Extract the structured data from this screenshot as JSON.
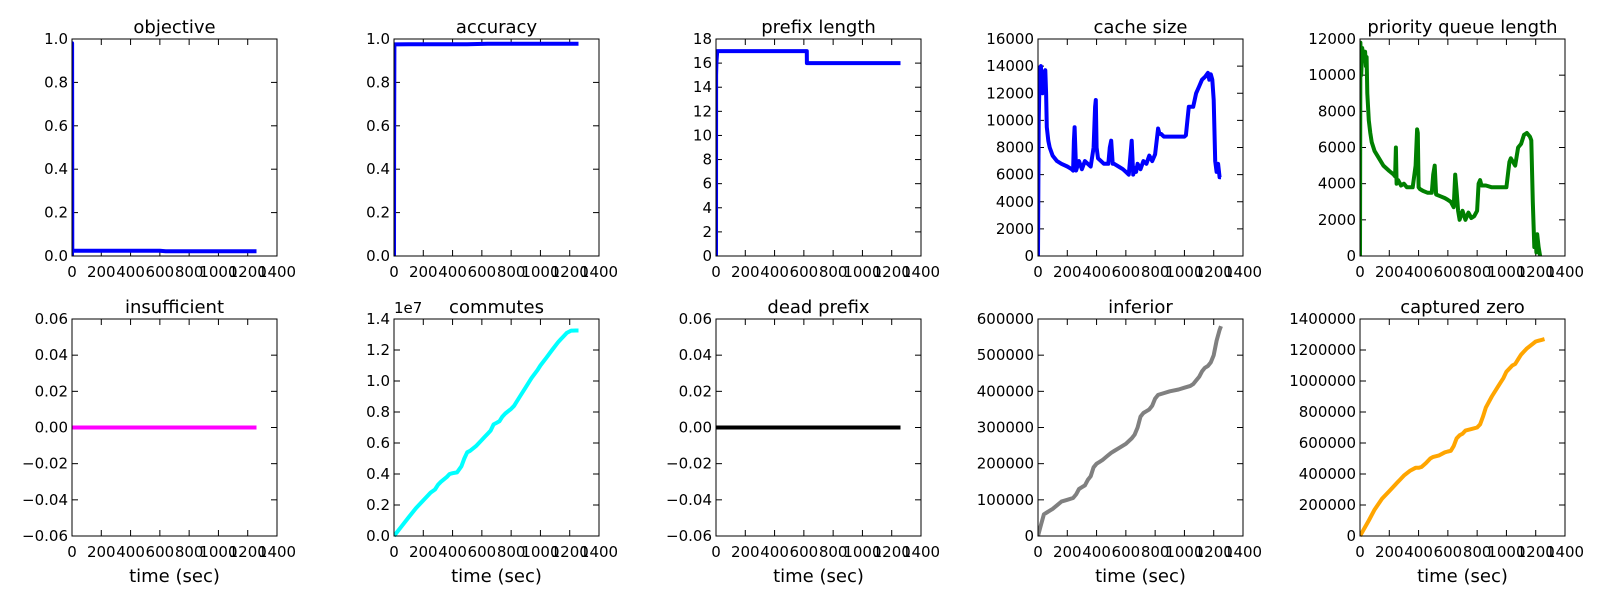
{
  "chart_data": [
    {
      "type": "line",
      "title": "objective",
      "xlabel": "",
      "ylabel": "",
      "xlim": [
        0,
        1400
      ],
      "ylim": [
        0,
        1.0
      ],
      "xticks": [
        0,
        200,
        400,
        600,
        800,
        1000,
        1200,
        1400
      ],
      "xtick_labels": [
        "0",
        "200",
        "400",
        "600",
        "800",
        "1000",
        "1200",
        "1400"
      ],
      "yticks": [
        0,
        0.2,
        0.4,
        0.6,
        0.8,
        1.0
      ],
      "ytick_labels": [
        "0.0",
        "0.2",
        "0.4",
        "0.6",
        "0.8",
        "1.0"
      ],
      "color": "#0000ff",
      "x": [
        0,
        1,
        2,
        5,
        100,
        300,
        500,
        600,
        640,
        800,
        1000,
        1200,
        1260
      ],
      "y": [
        0,
        0.98,
        0.03,
        0.024,
        0.024,
        0.024,
        0.024,
        0.024,
        0.022,
        0.022,
        0.022,
        0.022,
        0.022
      ]
    },
    {
      "type": "line",
      "title": "accuracy",
      "xlabel": "",
      "ylabel": "",
      "xlim": [
        0,
        1400
      ],
      "ylim": [
        0,
        1.0
      ],
      "xticks": [
        0,
        200,
        400,
        600,
        800,
        1000,
        1200,
        1400
      ],
      "xtick_labels": [
        "0",
        "200",
        "400",
        "600",
        "800",
        "1000",
        "1200",
        "1400"
      ],
      "yticks": [
        0,
        0.2,
        0.4,
        0.6,
        0.8,
        1.0
      ],
      "ytick_labels": [
        "0.0",
        "0.2",
        "0.4",
        "0.6",
        "0.8",
        "1.0"
      ],
      "color": "#0000ff",
      "x": [
        0,
        1,
        3,
        100,
        300,
        500,
        640,
        800,
        1000,
        1200,
        1260
      ],
      "y": [
        0,
        0.5,
        0.975,
        0.976,
        0.976,
        0.976,
        0.978,
        0.978,
        0.978,
        0.978,
        0.978
      ]
    },
    {
      "type": "line",
      "title": "prefix length",
      "xlabel": "",
      "ylabel": "",
      "xlim": [
        0,
        1400
      ],
      "ylim": [
        0,
        18
      ],
      "xticks": [
        0,
        200,
        400,
        600,
        800,
        1000,
        1200,
        1400
      ],
      "xtick_labels": [
        "0",
        "200",
        "400",
        "600",
        "800",
        "1000",
        "1200",
        "1400"
      ],
      "yticks": [
        0,
        2,
        4,
        6,
        8,
        10,
        12,
        14,
        16,
        18
      ],
      "ytick_labels": [
        "0",
        "2",
        "4",
        "6",
        "8",
        "10",
        "12",
        "14",
        "16",
        "18"
      ],
      "color": "#0000ff",
      "x": [
        0,
        1,
        3,
        8,
        20,
        400,
        620,
        621,
        640,
        800,
        1000,
        1200,
        1260
      ],
      "y": [
        0,
        15,
        16,
        17,
        17,
        17,
        17,
        16,
        16,
        16,
        16,
        16,
        16
      ]
    },
    {
      "type": "line",
      "title": "cache size",
      "xlabel": "",
      "ylabel": "",
      "xlim": [
        0,
        1400
      ],
      "ylim": [
        0,
        16000
      ],
      "xticks": [
        0,
        200,
        400,
        600,
        800,
        1000,
        1200,
        1400
      ],
      "xtick_labels": [
        "0",
        "200",
        "400",
        "600",
        "800",
        "1000",
        "1200",
        "1400"
      ],
      "yticks": [
        0,
        2000,
        4000,
        6000,
        8000,
        10000,
        12000,
        14000,
        16000
      ],
      "ytick_labels": [
        "0",
        "2000",
        "4000",
        "6000",
        "8000",
        "10000",
        "12000",
        "14000",
        "16000"
      ],
      "color": "#0000ff",
      "x": [
        0,
        5,
        12,
        20,
        30,
        40,
        50,
        55,
        60,
        70,
        80,
        100,
        130,
        160,
        200,
        230,
        240,
        245,
        250,
        260,
        280,
        300,
        320,
        360,
        380,
        390,
        395,
        400,
        410,
        430,
        450,
        480,
        490,
        500,
        510,
        520,
        550,
        580,
        600,
        620,
        640,
        650,
        660,
        670,
        680,
        700,
        720,
        740,
        760,
        780,
        800,
        820,
        830,
        840,
        860,
        900,
        960,
        1000,
        1010,
        1020,
        1030,
        1060,
        1080,
        1100,
        1120,
        1140,
        1160,
        1170,
        1180,
        1190,
        1200,
        1210,
        1220,
        1230,
        1240,
        1250
      ],
      "y": [
        0,
        10000,
        13800,
        14000,
        12000,
        13500,
        13700,
        12000,
        9500,
        8500,
        8000,
        7400,
        7000,
        6800,
        6600,
        6400,
        6300,
        8500,
        9500,
        6300,
        7000,
        6400,
        7000,
        6600,
        8000,
        11000,
        11500,
        8000,
        7200,
        7000,
        6800,
        6800,
        8000,
        8500,
        6800,
        6800,
        6600,
        6400,
        6200,
        6000,
        8500,
        6000,
        6500,
        6200,
        6800,
        6400,
        7000,
        6800,
        7400,
        7000,
        7500,
        9400,
        9000,
        9000,
        8800,
        8800,
        8800,
        8800,
        8900,
        10000,
        11000,
        11000,
        12000,
        12500,
        13000,
        13200,
        13500,
        13000,
        13400,
        13000,
        11500,
        7000,
        6200,
        6800,
        5800,
        5800
      ]
    },
    {
      "type": "line",
      "title": "priority queue length",
      "xlabel": "",
      "ylabel": "",
      "xlim": [
        0,
        1400
      ],
      "ylim": [
        0,
        12000
      ],
      "xticks": [
        0,
        200,
        400,
        600,
        800,
        1000,
        1200,
        1400
      ],
      "xtick_labels": [
        "0",
        "200",
        "400",
        "600",
        "800",
        "1000",
        "1200",
        "1400"
      ],
      "yticks": [
        0,
        2000,
        4000,
        6000,
        8000,
        10000,
        12000
      ],
      "ytick_labels": [
        "0",
        "2000",
        "4000",
        "6000",
        "8000",
        "10000",
        "12000"
      ],
      "color": "#008000",
      "x": [
        0,
        3,
        8,
        15,
        25,
        35,
        40,
        45,
        50,
        60,
        70,
        80,
        100,
        130,
        160,
        200,
        230,
        240,
        245,
        250,
        260,
        280,
        300,
        320,
        360,
        380,
        390,
        395,
        400,
        410,
        430,
        460,
        490,
        500,
        510,
        520,
        550,
        580,
        600,
        620,
        640,
        650,
        660,
        670,
        680,
        700,
        720,
        740,
        760,
        780,
        800,
        810,
        820,
        830,
        860,
        900,
        960,
        1000,
        1010,
        1020,
        1030,
        1060,
        1080,
        1100,
        1120,
        1140,
        1160,
        1170,
        1180,
        1190,
        1200,
        1205,
        1210,
        1220,
        1230
      ],
      "y": [
        0,
        11800,
        10000,
        11500,
        10800,
        11300,
        10500,
        11000,
        9000,
        7500,
        6800,
        6300,
        5800,
        5400,
        5000,
        4700,
        4500,
        4400,
        6000,
        4000,
        4200,
        3900,
        4000,
        3800,
        3800,
        5000,
        7000,
        6800,
        3800,
        3700,
        3600,
        3500,
        3500,
        4500,
        5000,
        3400,
        3300,
        3200,
        3100,
        3000,
        2700,
        4500,
        3600,
        2500,
        2000,
        2500,
        2000,
        2400,
        2100,
        2200,
        2500,
        4000,
        4200,
        3900,
        3900,
        3800,
        3800,
        3800,
        4500,
        5200,
        5400,
        5000,
        6000,
        6200,
        6700,
        6800,
        6600,
        6400,
        3000,
        500,
        1000,
        200,
        1200,
        500,
        0
      ]
    },
    {
      "type": "line",
      "title": "insufficient",
      "xlabel": "time (sec)",
      "ylabel": "",
      "xlim": [
        0,
        1400
      ],
      "ylim": [
        -0.06,
        0.06
      ],
      "xticks": [
        0,
        200,
        400,
        600,
        800,
        1000,
        1200,
        1400
      ],
      "xtick_labels": [
        "0",
        "200",
        "400",
        "600",
        "800",
        "1000",
        "1200",
        "1400"
      ],
      "yticks": [
        -0.06,
        -0.04,
        -0.02,
        0,
        0.02,
        0.04,
        0.06
      ],
      "ytick_labels": [
        "−0.06",
        "−0.04",
        "−0.02",
        "0.00",
        "0.02",
        "0.04",
        "0.06"
      ],
      "color": "#ff00ff",
      "x": [
        0,
        1260
      ],
      "y": [
        0,
        0
      ]
    },
    {
      "type": "line",
      "title": "commutes",
      "xlabel": "time (sec)",
      "ylabel": "",
      "xlim": [
        0,
        1400
      ],
      "ylim": [
        0,
        1.4
      ],
      "xticks": [
        0,
        200,
        400,
        600,
        800,
        1000,
        1200,
        1400
      ],
      "xtick_labels": [
        "0",
        "200",
        "400",
        "600",
        "800",
        "1000",
        "1200",
        "1400"
      ],
      "yticks": [
        0,
        0.2,
        0.4,
        0.6,
        0.8,
        1.0,
        1.2,
        1.4
      ],
      "ytick_labels": [
        "0.0",
        "0.2",
        "0.4",
        "0.6",
        "0.8",
        "1.0",
        "1.2",
        "1.4"
      ],
      "offset_label": "1e7",
      "color": "#00ffff",
      "x": [
        0,
        50,
        100,
        150,
        200,
        250,
        280,
        300,
        320,
        360,
        380,
        400,
        430,
        460,
        480,
        500,
        520,
        560,
        600,
        620,
        640,
        660,
        680,
        700,
        720,
        740,
        760,
        800,
        820,
        860,
        900,
        940,
        980,
        1000,
        1040,
        1080,
        1120,
        1140,
        1160,
        1180,
        1200,
        1210,
        1220,
        1240,
        1260
      ],
      "y": [
        0,
        0.06,
        0.12,
        0.18,
        0.23,
        0.28,
        0.3,
        0.33,
        0.35,
        0.38,
        0.4,
        0.405,
        0.41,
        0.45,
        0.5,
        0.54,
        0.55,
        0.58,
        0.62,
        0.64,
        0.66,
        0.68,
        0.72,
        0.73,
        0.74,
        0.77,
        0.79,
        0.82,
        0.84,
        0.9,
        0.96,
        1.02,
        1.07,
        1.1,
        1.15,
        1.2,
        1.25,
        1.27,
        1.29,
        1.31,
        1.32,
        1.325,
        1.325,
        1.326,
        1.326
      ]
    },
    {
      "type": "line",
      "title": "dead prefix",
      "xlabel": "time (sec)",
      "ylabel": "",
      "xlim": [
        0,
        1400
      ],
      "ylim": [
        -0.06,
        0.06
      ],
      "xticks": [
        0,
        200,
        400,
        600,
        800,
        1000,
        1200,
        1400
      ],
      "xtick_labels": [
        "0",
        "200",
        "400",
        "600",
        "800",
        "1000",
        "1200",
        "1400"
      ],
      "yticks": [
        -0.06,
        -0.04,
        -0.02,
        0,
        0.02,
        0.04,
        0.06
      ],
      "ytick_labels": [
        "−0.06",
        "−0.04",
        "−0.02",
        "0.00",
        "0.02",
        "0.04",
        "0.06"
      ],
      "color": "#000000",
      "x": [
        0,
        1260
      ],
      "y": [
        0,
        0
      ]
    },
    {
      "type": "line",
      "title": "inferior",
      "xlabel": "time (sec)",
      "ylabel": "",
      "xlim": [
        0,
        1400
      ],
      "ylim": [
        0,
        600000
      ],
      "xticks": [
        0,
        200,
        400,
        600,
        800,
        1000,
        1200,
        1400
      ],
      "xtick_labels": [
        "0",
        "200",
        "400",
        "600",
        "800",
        "1000",
        "1200",
        "1400"
      ],
      "yticks": [
        0,
        100000,
        200000,
        300000,
        400000,
        500000,
        600000
      ],
      "ytick_labels": [
        "0",
        "100000",
        "200000",
        "300000",
        "400000",
        "500000",
        "600000"
      ],
      "color": "#808080",
      "x": [
        0,
        20,
        40,
        60,
        80,
        100,
        130,
        160,
        200,
        240,
        260,
        280,
        300,
        320,
        340,
        360,
        380,
        400,
        420,
        440,
        470,
        500,
        520,
        560,
        600,
        640,
        660,
        680,
        700,
        720,
        740,
        760,
        780,
        800,
        820,
        860,
        900,
        960,
        1000,
        1040,
        1060,
        1080,
        1100,
        1120,
        1140,
        1160,
        1180,
        1200,
        1220,
        1240,
        1250
      ],
      "y": [
        0,
        30000,
        60000,
        65000,
        70000,
        75000,
        85000,
        95000,
        100000,
        105000,
        115000,
        130000,
        135000,
        140000,
        155000,
        165000,
        190000,
        200000,
        205000,
        210000,
        220000,
        230000,
        235000,
        245000,
        255000,
        270000,
        280000,
        300000,
        330000,
        340000,
        345000,
        350000,
        360000,
        380000,
        390000,
        395000,
        400000,
        405000,
        410000,
        415000,
        420000,
        430000,
        440000,
        455000,
        465000,
        470000,
        480000,
        500000,
        540000,
        570000,
        580000
      ]
    },
    {
      "type": "line",
      "title": "captured zero",
      "xlabel": "time (sec)",
      "ylabel": "",
      "xlim": [
        0,
        1400
      ],
      "ylim": [
        0,
        1400000
      ],
      "xticks": [
        0,
        200,
        400,
        600,
        800,
        1000,
        1200,
        1400
      ],
      "xtick_labels": [
        "0",
        "200",
        "400",
        "600",
        "800",
        "1000",
        "1200",
        "1400"
      ],
      "yticks": [
        0,
        200000,
        400000,
        600000,
        800000,
        1000000,
        1200000,
        1400000
      ],
      "ytick_labels": [
        "0",
        "200000",
        "400000",
        "600000",
        "800000",
        "1000000",
        "1200000",
        "1400000"
      ],
      "color": "#ffa500",
      "x": [
        0,
        30,
        60,
        100,
        150,
        200,
        250,
        300,
        340,
        380,
        400,
        420,
        450,
        480,
        500,
        540,
        580,
        600,
        620,
        640,
        660,
        680,
        700,
        720,
        760,
        800,
        820,
        840,
        860,
        900,
        940,
        980,
        1000,
        1040,
        1060,
        1080,
        1100,
        1140,
        1180,
        1200,
        1220,
        1240,
        1260
      ],
      "y": [
        0,
        50000,
        100000,
        170000,
        240000,
        290000,
        340000,
        390000,
        420000,
        440000,
        440000,
        445000,
        470000,
        500000,
        510000,
        520000,
        540000,
        545000,
        550000,
        580000,
        630000,
        650000,
        660000,
        680000,
        690000,
        700000,
        720000,
        770000,
        830000,
        900000,
        960000,
        1020000,
        1060000,
        1100000,
        1110000,
        1140000,
        1170000,
        1210000,
        1240000,
        1255000,
        1260000,
        1265000,
        1270000
      ]
    }
  ]
}
